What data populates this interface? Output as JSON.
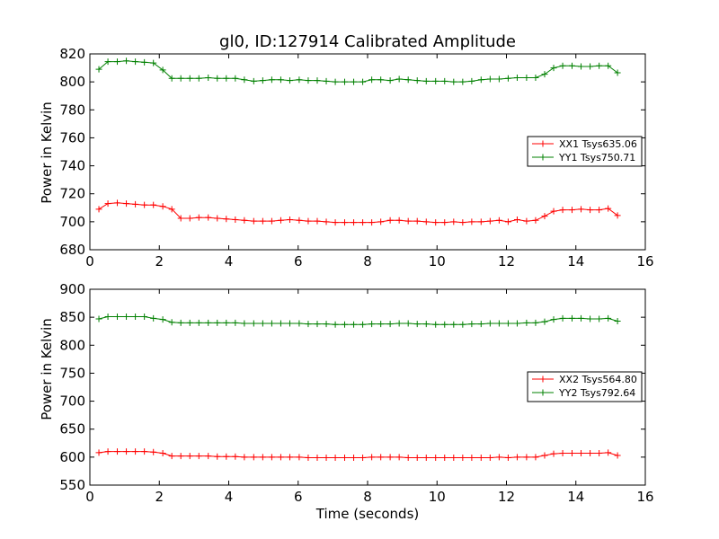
{
  "title": "gl0, ID:127914 Calibrated Amplitude",
  "xlabel": "Time (seconds)",
  "ylabel": "Power in Kelvin",
  "colors": {
    "red": "#ff0000",
    "green": "#008000"
  },
  "chart_data": [
    {
      "type": "line",
      "title": "gl0, ID:127914 Calibrated Amplitude",
      "xlabel": "",
      "ylabel": "Power in Kelvin",
      "xlim": [
        0,
        16
      ],
      "ylim": [
        680,
        820
      ],
      "xticks": [
        "0",
        "2",
        "4",
        "6",
        "8",
        "10",
        "12",
        "14",
        "16"
      ],
      "yticks": [
        "680",
        "700",
        "720",
        "740",
        "760",
        "780",
        "800",
        "820"
      ],
      "legend_position": "center-right",
      "x": [
        0.26,
        0.52,
        0.79,
        1.05,
        1.31,
        1.57,
        1.83,
        2.1,
        2.36,
        2.62,
        2.88,
        3.14,
        3.41,
        3.67,
        3.93,
        4.19,
        4.45,
        4.72,
        4.98,
        5.24,
        5.5,
        5.76,
        6.03,
        6.29,
        6.55,
        6.81,
        7.07,
        7.34,
        7.6,
        7.86,
        8.12,
        8.38,
        8.65,
        8.91,
        9.17,
        9.43,
        9.69,
        9.96,
        10.22,
        10.48,
        10.74,
        11.0,
        11.27,
        11.53,
        11.79,
        12.05,
        12.31,
        12.58,
        12.84,
        13.1,
        13.36,
        13.62,
        13.89,
        14.15,
        14.41,
        14.67,
        14.93,
        15.2
      ],
      "series": [
        {
          "name": "XX1 Tsys635.06",
          "color": "#ff0000",
          "values": [
            709,
            713,
            713.5,
            713,
            712.5,
            712,
            712,
            711,
            709,
            702.5,
            702.5,
            703,
            703,
            702.5,
            702,
            701.5,
            701,
            700.5,
            700.5,
            700.5,
            701,
            701.5,
            701,
            700.5,
            700.5,
            700,
            699.5,
            699.5,
            699.5,
            699.5,
            699.5,
            700,
            701,
            701,
            700.5,
            700.5,
            700,
            699.5,
            699.5,
            700,
            699.5,
            700,
            700,
            700.5,
            701,
            700,
            701.5,
            700.5,
            701,
            704,
            707.5,
            708.5,
            708.5,
            709,
            708.5,
            708.5,
            709.5,
            704.5
          ]
        },
        {
          "name": "YY1 Tsys750.71",
          "color": "#008000",
          "values": [
            809,
            814.5,
            814.5,
            815,
            814.5,
            814,
            813.5,
            808.5,
            802.5,
            802.5,
            802.5,
            802.5,
            803,
            802.5,
            802.5,
            802.5,
            801.5,
            800.5,
            801,
            801.5,
            801.5,
            801,
            801.5,
            801,
            801,
            800.5,
            800,
            800,
            800,
            800,
            801.5,
            801.5,
            801,
            802,
            801.5,
            801,
            800.5,
            800.5,
            800.5,
            800,
            800,
            800.5,
            801.5,
            802,
            802,
            802.5,
            803,
            803,
            803,
            805.5,
            810,
            811.5,
            811.5,
            811,
            811,
            811.5,
            811.5,
            806.5
          ]
        }
      ]
    },
    {
      "type": "line",
      "title": "",
      "xlabel": "Time (seconds)",
      "ylabel": "Power in Kelvin",
      "xlim": [
        0,
        16
      ],
      "ylim": [
        550,
        900
      ],
      "xticks": [
        "0",
        "2",
        "4",
        "6",
        "8",
        "10",
        "12",
        "14",
        "16"
      ],
      "yticks": [
        "550",
        "600",
        "650",
        "700",
        "750",
        "800",
        "850",
        "900"
      ],
      "legend_position": "center-right",
      "x": [
        0.26,
        0.52,
        0.79,
        1.05,
        1.31,
        1.57,
        1.83,
        2.1,
        2.36,
        2.62,
        2.88,
        3.14,
        3.41,
        3.67,
        3.93,
        4.19,
        4.45,
        4.72,
        4.98,
        5.24,
        5.5,
        5.76,
        6.03,
        6.29,
        6.55,
        6.81,
        7.07,
        7.34,
        7.6,
        7.86,
        8.12,
        8.38,
        8.65,
        8.91,
        9.17,
        9.43,
        9.69,
        9.96,
        10.22,
        10.48,
        10.74,
        11.0,
        11.27,
        11.53,
        11.79,
        12.05,
        12.31,
        12.58,
        12.84,
        13.1,
        13.36,
        13.62,
        13.89,
        14.15,
        14.41,
        14.67,
        14.93,
        15.2
      ],
      "series": [
        {
          "name": "XX2 Tsys564.80",
          "color": "#ff0000",
          "values": [
            608,
            610,
            610,
            610,
            610,
            610,
            609,
            607,
            602,
            602,
            602,
            602,
            602,
            601,
            601,
            601,
            600,
            600,
            600,
            600,
            600,
            600,
            600,
            599,
            599,
            599,
            599,
            599,
            599,
            599,
            600,
            600,
            600,
            600,
            599,
            599,
            599,
            599,
            599,
            599,
            599,
            599,
            599,
            599,
            600,
            599,
            600,
            600,
            600,
            603,
            606,
            607,
            607,
            607,
            607,
            607,
            608,
            603
          ]
        },
        {
          "name": "YY2 Tsys792.64",
          "color": "#008000",
          "values": [
            847,
            851,
            851,
            851,
            851,
            851,
            848,
            846,
            841,
            840,
            840,
            840,
            840,
            840,
            840,
            840,
            839,
            839,
            839,
            839,
            839,
            839,
            839,
            838,
            838,
            838,
            837,
            837,
            837,
            837,
            838,
            838,
            838,
            839,
            839,
            838,
            838,
            837,
            837,
            837,
            837,
            838,
            838,
            839,
            839,
            839,
            839,
            840,
            840,
            842,
            846,
            848,
            848,
            848,
            847,
            847,
            848,
            843
          ]
        }
      ]
    }
  ]
}
